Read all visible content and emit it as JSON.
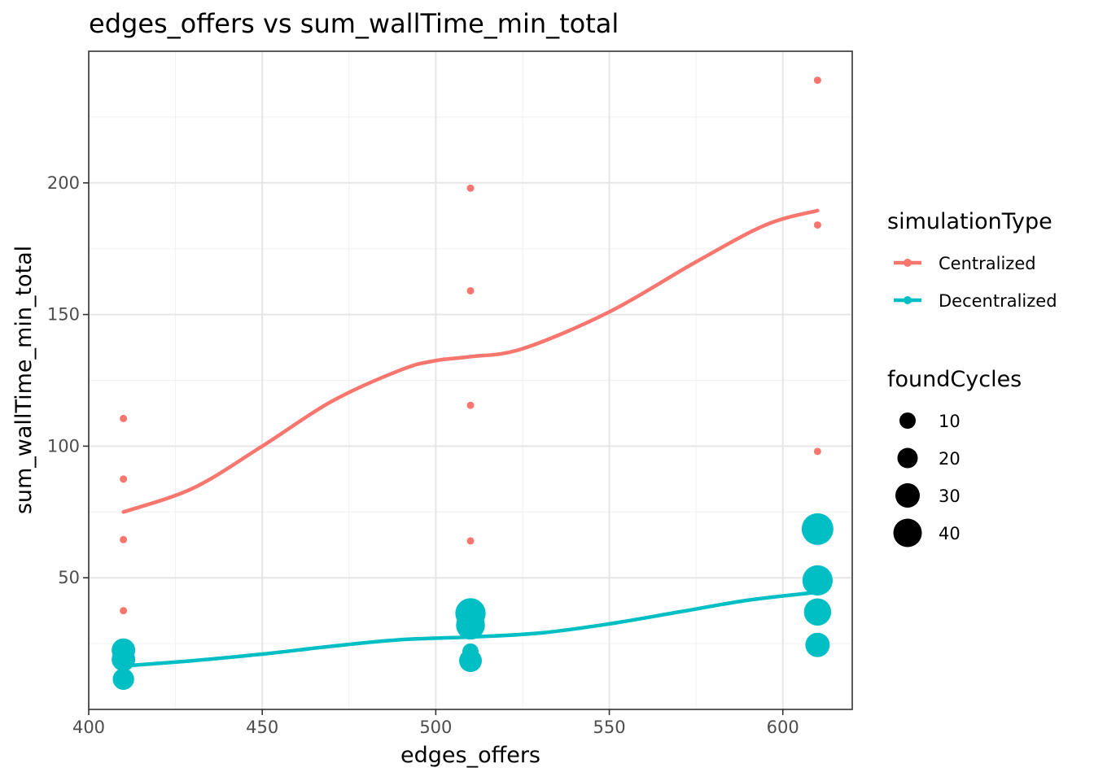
{
  "chart_data": {
    "type": "scatter",
    "title": "edges_offers  vs  sum_wallTime_min_total",
    "xlabel": "edges_offers",
    "ylabel": "sum_wallTime_min_total",
    "xlim": [
      400,
      620
    ],
    "ylim": [
      0,
      250
    ],
    "xticks": [
      400,
      450,
      500,
      550,
      600
    ],
    "yticks": [
      50,
      100,
      150,
      200
    ],
    "grid": true,
    "legend_position": "right",
    "color_legend": {
      "title": "simulationType",
      "entries": [
        "Centralized",
        "Decentralized"
      ]
    },
    "size_legend": {
      "title": "foundCycles",
      "entries": [
        10,
        20,
        30,
        40
      ]
    },
    "series": [
      {
        "name": "Centralized",
        "color": "#F8766D",
        "points": [
          {
            "x": 410,
            "y": 110.5,
            "size": 1
          },
          {
            "x": 410,
            "y": 87.5,
            "size": 1
          },
          {
            "x": 410,
            "y": 64.5,
            "size": 1
          },
          {
            "x": 410,
            "y": 37.5,
            "size": 1
          },
          {
            "x": 510,
            "y": 198,
            "size": 1
          },
          {
            "x": 510,
            "y": 159,
            "size": 1
          },
          {
            "x": 510,
            "y": 115.5,
            "size": 1
          },
          {
            "x": 510,
            "y": 64,
            "size": 1
          },
          {
            "x": 610,
            "y": 239,
            "size": 1
          },
          {
            "x": 610,
            "y": 184,
            "size": 1
          },
          {
            "x": 610,
            "y": 98,
            "size": 1
          }
        ],
        "smooth": [
          {
            "x": 410,
            "y": 75
          },
          {
            "x": 430,
            "y": 84
          },
          {
            "x": 450,
            "y": 100
          },
          {
            "x": 470,
            "y": 117
          },
          {
            "x": 490,
            "y": 129
          },
          {
            "x": 500,
            "y": 132.5
          },
          {
            "x": 510,
            "y": 134
          },
          {
            "x": 525,
            "y": 137
          },
          {
            "x": 550,
            "y": 151
          },
          {
            "x": 575,
            "y": 170
          },
          {
            "x": 595,
            "y": 184
          },
          {
            "x": 610,
            "y": 189.5
          }
        ]
      },
      {
        "name": "Decentralized",
        "color": "#00BFC4",
        "points": [
          {
            "x": 410,
            "y": 22.5,
            "size": 20
          },
          {
            "x": 410,
            "y": 19,
            "size": 20
          },
          {
            "x": 410,
            "y": 11.5,
            "size": 15
          },
          {
            "x": 510,
            "y": 36.5,
            "size": 40
          },
          {
            "x": 510,
            "y": 32,
            "size": 35
          },
          {
            "x": 510,
            "y": 22,
            "size": 6
          },
          {
            "x": 510,
            "y": 18.5,
            "size": 18
          },
          {
            "x": 610,
            "y": 68.5,
            "size": 45
          },
          {
            "x": 610,
            "y": 49,
            "size": 40
          },
          {
            "x": 610,
            "y": 37,
            "size": 30
          },
          {
            "x": 610,
            "y": 24.5,
            "size": 22
          }
        ],
        "smooth": [
          {
            "x": 410,
            "y": 16.5
          },
          {
            "x": 430,
            "y": 18.5
          },
          {
            "x": 450,
            "y": 21
          },
          {
            "x": 470,
            "y": 24
          },
          {
            "x": 490,
            "y": 26.5
          },
          {
            "x": 510,
            "y": 27.5
          },
          {
            "x": 530,
            "y": 29
          },
          {
            "x": 550,
            "y": 32.5
          },
          {
            "x": 570,
            "y": 37
          },
          {
            "x": 590,
            "y": 41.5
          },
          {
            "x": 610,
            "y": 44.5
          }
        ]
      }
    ]
  }
}
